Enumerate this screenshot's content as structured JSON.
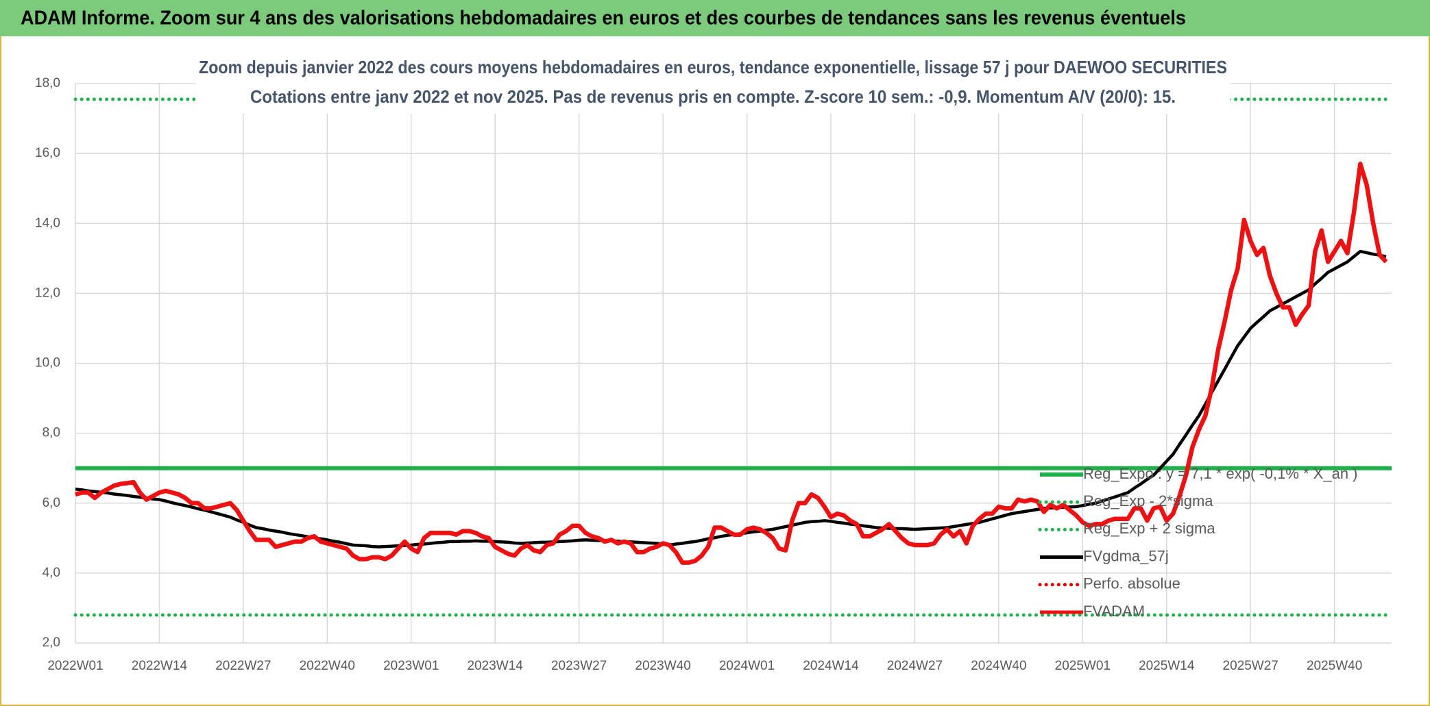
{
  "header": "ADAM Informe. Zoom sur 4 ans des valorisations hebdomadaires en euros et des courbes de tendances sans les revenus éventuels",
  "chart_data": {
    "type": "line",
    "title": "Zoom depuis janvier 2022 des cours moyens hebdomadaires en euros, tendance exponentielle, lissage 57 j pour DAEWOO SECURITIES",
    "subtitle": "Cotations entre janv 2022 et nov 2025. Pas de revenus pris en compte. Z-score 10 sem.: -0,9. Momentum A/V (20/0): 15.",
    "categories": [
      "2022W01",
      null,
      null,
      null,
      null,
      null,
      null,
      null,
      null,
      null,
      null,
      null,
      null,
      "2022W14",
      null,
      null,
      null,
      null,
      null,
      null,
      null,
      null,
      null,
      null,
      null,
      null,
      "2022W27",
      null,
      null,
      null,
      null,
      null,
      null,
      null,
      null,
      null,
      null,
      null,
      null,
      "2022W40",
      null,
      null,
      null,
      null,
      null,
      null,
      null,
      null,
      null,
      null,
      null,
      null,
      "2023W01",
      null,
      null,
      null,
      null,
      null,
      null,
      null,
      null,
      null,
      null,
      null,
      null,
      "2023W14",
      null,
      null,
      null,
      null,
      null,
      null,
      null,
      null,
      null,
      null,
      null,
      null,
      "2023W27",
      null,
      null,
      null,
      null,
      null,
      null,
      null,
      null,
      null,
      null,
      null,
      null,
      "2023W40",
      null,
      null,
      null,
      null,
      null,
      null,
      null,
      null,
      null,
      null,
      null,
      null,
      "2024W01",
      null,
      null,
      null,
      null,
      null,
      null,
      null,
      null,
      null,
      null,
      null,
      null,
      "2024W14",
      null,
      null,
      null,
      null,
      null,
      null,
      null,
      null,
      null,
      null,
      null,
      null,
      "2024W27",
      null,
      null,
      null,
      null,
      null,
      null,
      null,
      null,
      null,
      null,
      null,
      null,
      "2024W40",
      null,
      null,
      null,
      null,
      null,
      null,
      null,
      null,
      null,
      null,
      null,
      null,
      "2025W01",
      null,
      null,
      null,
      null,
      null,
      null,
      null,
      null,
      null,
      null,
      null,
      null,
      "2025W14",
      null,
      null,
      null,
      null,
      null,
      null,
      null,
      null,
      null,
      null,
      null,
      null,
      "2025W27",
      null,
      null,
      null,
      null,
      null,
      null,
      null,
      null,
      null,
      null,
      null,
      null,
      "2025W40",
      null,
      null,
      null,
      null,
      null,
      null,
      null,
      null
    ],
    "ylim": [
      2,
      18
    ],
    "yticks": [
      {
        "value": 2,
        "label": "2,0"
      },
      {
        "value": 4,
        "label": "4,0"
      },
      {
        "value": 6,
        "label": "6,0"
      },
      {
        "value": 8,
        "label": "8,0"
      },
      {
        "value": 10,
        "label": "10,0"
      },
      {
        "value": 12,
        "label": "12,0"
      },
      {
        "value": 14,
        "label": "14,0"
      },
      {
        "value": 16,
        "label": "16,0"
      },
      {
        "value": 18,
        "label": "18,0"
      }
    ],
    "grid": true,
    "legend": "right",
    "series": [
      {
        "name": "Reg_Expo : y = 7,1 * exp( -0,1% *  X_an )",
        "color": "#1db04b",
        "style": "solid",
        "value": 7.0
      },
      {
        "name": "Reg_Exp - 2*sigma",
        "color": "#1db04b",
        "style": "dotted",
        "value": 2.8
      },
      {
        "name": "Reg_Exp + 2 sigma",
        "color": "#1db04b",
        "style": "dotted",
        "value": 17.55
      },
      {
        "name": "FVgdma_57j",
        "color": "#000000",
        "style": "solid",
        "values": [
          6.4,
          6.38,
          6.35,
          6.33,
          6.31,
          6.29,
          6.26,
          6.24,
          6.22,
          6.19,
          6.17,
          6.15,
          6.12,
          6.1,
          6.06,
          6.01,
          5.97,
          5.93,
          5.89,
          5.84,
          5.8,
          5.75,
          5.7,
          5.65,
          5.6,
          5.52,
          5.45,
          5.37,
          5.3,
          5.27,
          5.23,
          5.2,
          5.17,
          5.13,
          5.1,
          5.07,
          5.04,
          5.01,
          4.98,
          4.95,
          4.91,
          4.88,
          4.84,
          4.8,
          4.79,
          4.78,
          4.76,
          4.75,
          4.76,
          4.77,
          4.78,
          4.79,
          4.8,
          4.82,
          4.83,
          4.85,
          4.87,
          4.88,
          4.9,
          4.9,
          4.91,
          4.91,
          4.92,
          4.91,
          4.91,
          4.9,
          4.89,
          4.88,
          4.86,
          4.85,
          4.86,
          4.87,
          4.88,
          4.88,
          4.89,
          4.9,
          4.91,
          4.92,
          4.94,
          4.95,
          4.94,
          4.93,
          4.93,
          4.92,
          4.91,
          4.9,
          4.89,
          4.88,
          4.87,
          4.86,
          4.85,
          4.83,
          4.8,
          4.83,
          4.85,
          4.88,
          4.9,
          4.94,
          4.98,
          5.01,
          5.05,
          5.08,
          5.1,
          5.13,
          5.15,
          5.18,
          5.2,
          5.23,
          5.25,
          5.29,
          5.33,
          5.37,
          5.41,
          5.45,
          5.47,
          5.48,
          5.5,
          5.48,
          5.45,
          5.43,
          5.4,
          5.38,
          5.35,
          5.33,
          5.3,
          5.29,
          5.28,
          5.27,
          5.27,
          5.26,
          5.25,
          5.26,
          5.27,
          5.28,
          5.29,
          5.3,
          5.33,
          5.36,
          5.39,
          5.42,
          5.45,
          5.5,
          5.55,
          5.6,
          5.65,
          5.7,
          5.73,
          5.76,
          5.79,
          5.82,
          5.85,
          5.86,
          5.87,
          5.88,
          5.89,
          5.9,
          5.93,
          5.97,
          6.0,
          6.06,
          6.12,
          6.18,
          6.24,
          6.3,
          6.43,
          6.55,
          6.68,
          6.8,
          7.0,
          7.2,
          7.4,
          7.68,
          7.95,
          8.23,
          8.5,
          8.83,
          9.17,
          9.5,
          9.83,
          10.17,
          10.5,
          10.75,
          11.0,
          11.17,
          11.33,
          11.5,
          11.6,
          11.7,
          11.8,
          11.9,
          12.0,
          12.1,
          12.27,
          12.43,
          12.6,
          12.7,
          12.8,
          12.9,
          13.05,
          13.2,
          13.16,
          13.12,
          13.09,
          13.05
        ]
      },
      {
        "name": "Perfo. absolue",
        "color": "#e00000",
        "style": "dotted"
      },
      {
        "name": "FVADAM",
        "color": "#ee1111",
        "style": "solid",
        "values": [
          6.25,
          6.3,
          6.3,
          6.15,
          6.3,
          6.4,
          6.5,
          6.55,
          6.57,
          6.6,
          6.3,
          6.1,
          6.2,
          6.3,
          6.35,
          6.3,
          6.25,
          6.15,
          6.0,
          6.0,
          5.85,
          5.85,
          5.9,
          5.95,
          6.0,
          5.8,
          5.5,
          5.2,
          4.95,
          4.95,
          4.95,
          4.75,
          4.8,
          4.85,
          4.9,
          4.9,
          5.0,
          5.05,
          4.9,
          4.85,
          4.8,
          4.75,
          4.7,
          4.5,
          4.4,
          4.4,
          4.45,
          4.45,
          4.4,
          4.5,
          4.7,
          4.9,
          4.7,
          4.6,
          5.0,
          5.15,
          5.15,
          5.15,
          5.15,
          5.1,
          5.2,
          5.2,
          5.15,
          5.05,
          5.0,
          4.75,
          4.65,
          4.55,
          4.5,
          4.7,
          4.8,
          4.65,
          4.6,
          4.8,
          4.85,
          5.1,
          5.2,
          5.35,
          5.35,
          5.15,
          5.05,
          5.0,
          4.9,
          4.95,
          4.85,
          4.9,
          4.85,
          4.6,
          4.6,
          4.7,
          4.75,
          4.85,
          4.8,
          4.6,
          4.3,
          4.3,
          4.35,
          4.5,
          4.75,
          5.3,
          5.3,
          5.2,
          5.1,
          5.1,
          5.25,
          5.3,
          5.25,
          5.15,
          5.0,
          4.7,
          4.65,
          5.5,
          6.0,
          6.0,
          6.25,
          6.15,
          5.9,
          5.6,
          5.7,
          5.65,
          5.5,
          5.4,
          5.05,
          5.05,
          5.15,
          5.25,
          5.4,
          5.2,
          5.0,
          4.85,
          4.8,
          4.8,
          4.8,
          4.85,
          5.1,
          5.25,
          5.05,
          5.2,
          4.85,
          5.35,
          5.55,
          5.7,
          5.7,
          5.9,
          5.85,
          5.85,
          6.1,
          6.05,
          6.1,
          6.05,
          5.75,
          5.95,
          5.85,
          5.95,
          5.8,
          5.65,
          5.45,
          5.35,
          5.4,
          5.4,
          5.5,
          5.55,
          5.55,
          5.55,
          5.85,
          5.85,
          5.5,
          5.85,
          5.9,
          5.5,
          5.7,
          6.2,
          6.8,
          7.6,
          8.1,
          8.5,
          9.3,
          10.4,
          11.2,
          12.1,
          12.7,
          14.1,
          13.5,
          13.1,
          13.3,
          12.5,
          12.0,
          11.6,
          11.6,
          11.1,
          11.4,
          11.65,
          13.2,
          13.8,
          12.9,
          13.2,
          13.5,
          13.15,
          14.3,
          15.7,
          15.1,
          14.0,
          13.1,
          12.9
        ]
      }
    ]
  }
}
